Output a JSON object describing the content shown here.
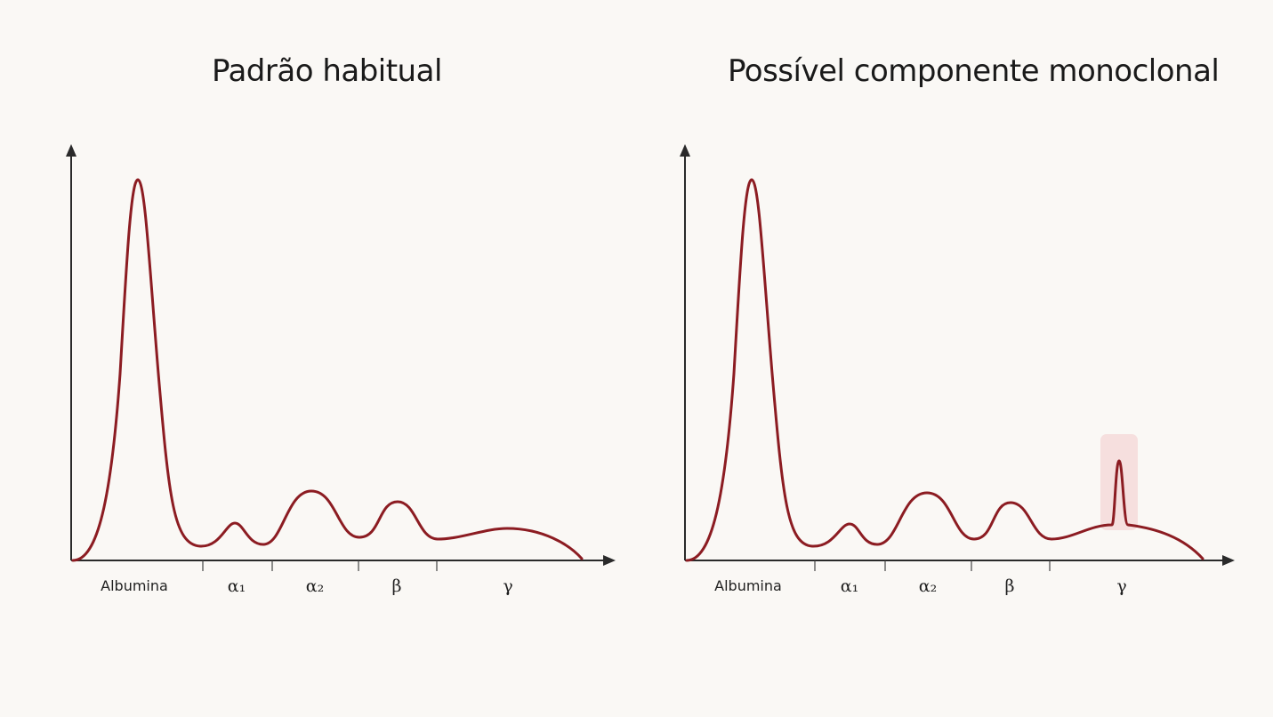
{
  "panels": [
    {
      "id": "left",
      "title": "Padrão habitual",
      "fractions": [
        "Albumina",
        "α₁",
        "α₂",
        "β",
        "γ"
      ],
      "monoclonal_spike": false
    },
    {
      "id": "right",
      "title": "Possível componente monoclonal",
      "fractions": [
        "Albumina",
        "α₁",
        "α₂",
        "β",
        "γ"
      ],
      "monoclonal_spike": true
    }
  ],
  "colors": {
    "background": "#faf8f5",
    "curve": "#8c1c22",
    "axis": "#2a2a2a",
    "highlight": "#f4d4d4"
  }
}
